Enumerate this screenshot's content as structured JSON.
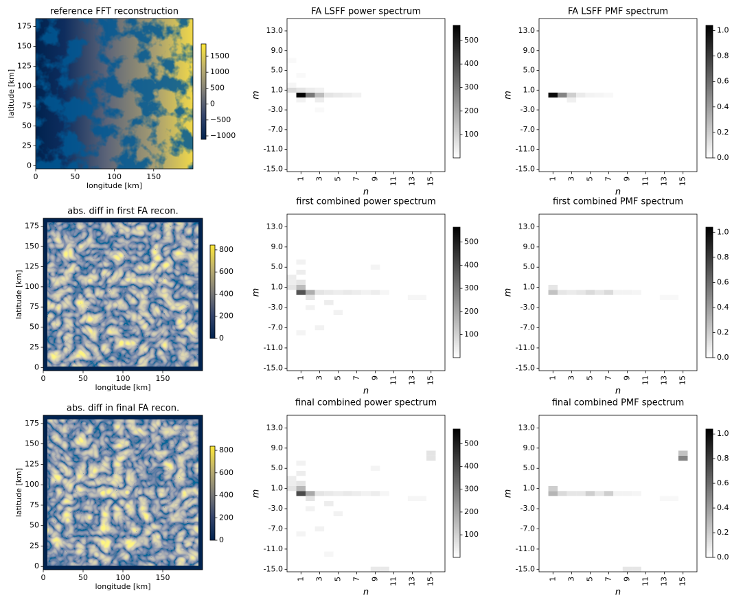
{
  "chart_data": [
    {
      "type": "image",
      "title": "reference FFT reconstruction",
      "xlabel": "longitude [km]",
      "ylabel": "latitude [km]",
      "xlim": [
        0,
        200
      ],
      "ylim": [
        -4,
        185
      ],
      "xticks": [
        0,
        50,
        100,
        150
      ],
      "yticks": [
        0,
        25,
        50,
        75,
        100,
        125,
        150,
        175
      ],
      "colormap": "cividis",
      "style": "terrain",
      "colorbar": {
        "clim": [
          -1108,
          1888
        ],
        "ticks": [
          {
            "value": -1000,
            "label": "−1000"
          },
          {
            "value": -500,
            "label": "−500"
          },
          0,
          500,
          1000,
          1500
        ]
      }
    },
    {
      "type": "heatmap",
      "title": "FA LSFF power spectrum",
      "xlabel": "n",
      "ylabel": "m",
      "xlim": [
        -0.5,
        16.5
      ],
      "ylim": [
        -15.5,
        15.5
      ],
      "xticks": [
        1,
        3,
        5,
        7,
        9,
        11,
        13,
        15
      ],
      "yticks": [
        {
          "value": -15,
          "label": "-15.0"
        },
        {
          "value": -11,
          "label": "-11.0"
        },
        {
          "value": -7,
          "label": "-7.0"
        },
        {
          "value": -3,
          "label": "-3.0"
        },
        {
          "value": 1,
          "label": "1.0"
        },
        {
          "value": 5,
          "label": "5.0"
        },
        {
          "value": 9,
          "label": "9.0"
        },
        {
          "value": 13,
          "label": "13.0"
        }
      ],
      "n": [
        1,
        2,
        3,
        4,
        5,
        6,
        7,
        0,
        1,
        2,
        3,
        3,
        1,
        0,
        1,
        3,
        0
      ],
      "m": [
        0,
        0,
        0,
        0,
        0,
        0,
        0,
        1,
        1,
        1,
        1,
        -1,
        -1,
        2,
        4,
        -3,
        7
      ],
      "values": [
        560,
        300,
        150,
        60,
        50,
        40,
        30,
        80,
        60,
        40,
        30,
        40,
        30,
        20,
        15,
        15,
        15
      ],
      "colorbar": {
        "clim": [
          1,
          564
        ],
        "ticks": [
          100,
          200,
          300,
          400,
          500
        ]
      }
    },
    {
      "type": "heatmap",
      "title": "FA LSFF PMF spectrum",
      "xlabel": "n",
      "ylabel": "m",
      "xlim": [
        -0.5,
        16.5
      ],
      "ylim": [
        -15.5,
        15.5
      ],
      "xticks": [
        1,
        3,
        5,
        7,
        9,
        11,
        13,
        15
      ],
      "yticks": [
        {
          "value": -15,
          "label": "-15.0"
        },
        {
          "value": -11,
          "label": "-11.0"
        },
        {
          "value": -7,
          "label": "-7.0"
        },
        {
          "value": -3,
          "label": "-3.0"
        },
        {
          "value": 1,
          "label": "1.0"
        },
        {
          "value": 5,
          "label": "5.0"
        },
        {
          "value": 9,
          "label": "9.0"
        },
        {
          "value": 13,
          "label": "13.0"
        }
      ],
      "n": [
        1,
        2,
        3,
        4,
        5,
        6,
        7,
        3
      ],
      "m": [
        0,
        0,
        0,
        0,
        0,
        0,
        0,
        -1
      ],
      "values": [
        1.0,
        0.5,
        0.2,
        0.08,
        0.05,
        0.04,
        0.03,
        0.06
      ],
      "colorbar": {
        "clim": [
          0,
          1.04
        ],
        "ticks": [
          {
            "value": 0,
            "label": "0.0"
          },
          0.2,
          0.4,
          0.6,
          0.8,
          {
            "value": 1,
            "label": "1.0"
          }
        ]
      }
    },
    {
      "type": "image",
      "title": "abs. diff in first FA recon.",
      "xlabel": "longitude [km]",
      "ylabel": "latitude [km]",
      "xlim": [
        0,
        200
      ],
      "ylim": [
        -4,
        185
      ],
      "xticks": [
        0,
        50,
        100,
        150
      ],
      "yticks": [
        0,
        25,
        50,
        75,
        100,
        125,
        150,
        175
      ],
      "colormap": "cividis",
      "style": "blobs",
      "colorbar": {
        "clim": [
          0,
          843
        ],
        "ticks": [
          0,
          200,
          400,
          600,
          800
        ]
      }
    },
    {
      "type": "heatmap",
      "title": "first combined power spectrum",
      "xlabel": "n",
      "ylabel": "m",
      "xlim": [
        -0.5,
        16.5
      ],
      "ylim": [
        -15.5,
        15.5
      ],
      "xticks": [
        1,
        3,
        5,
        7,
        9,
        11,
        13,
        15
      ],
      "yticks": [
        {
          "value": -15,
          "label": "-15.0"
        },
        {
          "value": -11,
          "label": "-11.0"
        },
        {
          "value": -7,
          "label": "-7.0"
        },
        {
          "value": -3,
          "label": "-3.0"
        },
        {
          "value": 1,
          "label": "1.0"
        },
        {
          "value": 5,
          "label": "5.0"
        },
        {
          "value": 9,
          "label": "9.0"
        },
        {
          "value": 13,
          "label": "13.0"
        }
      ],
      "n": [
        1,
        2,
        1,
        0,
        1,
        0,
        2,
        3,
        4,
        5,
        6,
        7,
        8,
        9,
        10,
        13,
        14,
        1,
        1,
        4,
        5,
        9,
        1,
        3,
        0,
        2
      ],
      "m": [
        0,
        0,
        1,
        1,
        2,
        2,
        -1,
        0,
        0,
        0,
        0,
        0,
        0,
        0,
        0,
        -1,
        -1,
        6,
        4,
        -2,
        -4,
        5,
        -8,
        -7,
        3,
        -3
      ],
      "values": [
        380,
        180,
        150,
        60,
        60,
        40,
        60,
        60,
        50,
        40,
        50,
        40,
        30,
        40,
        20,
        20,
        20,
        30,
        40,
        40,
        30,
        25,
        25,
        30,
        40,
        30
      ],
      "colorbar": {
        "clim": [
          1,
          564
        ],
        "ticks": [
          100,
          200,
          300,
          400,
          500
        ]
      }
    },
    {
      "type": "heatmap",
      "title": "first combined PMF spectrum",
      "xlabel": "n",
      "ylabel": "m",
      "xlim": [
        -0.5,
        16.5
      ],
      "ylim": [
        -15.5,
        15.5
      ],
      "xticks": [
        1,
        3,
        5,
        7,
        9,
        11,
        13,
        15
      ],
      "yticks": [
        {
          "value": -15,
          "label": "-15.0"
        },
        {
          "value": -11,
          "label": "-11.0"
        },
        {
          "value": -7,
          "label": "-7.0"
        },
        {
          "value": -3,
          "label": "-3.0"
        },
        {
          "value": 1,
          "label": "1.0"
        },
        {
          "value": 5,
          "label": "5.0"
        },
        {
          "value": 9,
          "label": "9.0"
        },
        {
          "value": 13,
          "label": "13.0"
        }
      ],
      "n": [
        1,
        1,
        2,
        3,
        4,
        5,
        6,
        7,
        8,
        9,
        10,
        13,
        14
      ],
      "m": [
        0,
        1,
        0,
        0,
        0,
        0,
        0,
        0,
        0,
        0,
        0,
        -1,
        -1
      ],
      "values": [
        0.25,
        0.1,
        0.1,
        0.08,
        0.1,
        0.15,
        0.1,
        0.15,
        0.05,
        0.05,
        0.04,
        0.03,
        0.03
      ],
      "colorbar": {
        "clim": [
          0,
          1.04
        ],
        "ticks": [
          {
            "value": 0,
            "label": "0.0"
          },
          0.2,
          0.4,
          0.6,
          0.8,
          {
            "value": 1,
            "label": "1.0"
          }
        ]
      }
    },
    {
      "type": "image",
      "title": "abs. diff in final FA recon.",
      "xlabel": "longitude [km]",
      "ylabel": "latitude [km]",
      "xlim": [
        0,
        200
      ],
      "ylim": [
        -4,
        185
      ],
      "xticks": [
        0,
        50,
        100,
        150
      ],
      "yticks": [
        0,
        25,
        50,
        75,
        100,
        125,
        150,
        175
      ],
      "colormap": "cividis",
      "style": "blobs",
      "colorbar": {
        "clim": [
          0,
          837
        ],
        "ticks": [
          0,
          200,
          400,
          600,
          800
        ]
      }
    },
    {
      "type": "heatmap",
      "title": "final combined power spectrum",
      "xlabel": "n",
      "ylabel": "m",
      "xlim": [
        -0.5,
        16.5
      ],
      "ylim": [
        -15.5,
        15.5
      ],
      "xticks": [
        1,
        3,
        5,
        7,
        9,
        11,
        13,
        15
      ],
      "yticks": [
        {
          "value": -15,
          "label": "-15.0"
        },
        {
          "value": -11,
          "label": "-11.0"
        },
        {
          "value": -7,
          "label": "-7.0"
        },
        {
          "value": -3,
          "label": "-3.0"
        },
        {
          "value": 1,
          "label": "1.0"
        },
        {
          "value": 5,
          "label": "5.0"
        },
        {
          "value": 9,
          "label": "9.0"
        },
        {
          "value": 13,
          "label": "13.0"
        }
      ],
      "n": [
        1,
        2,
        1,
        0,
        1,
        0,
        2,
        3,
        4,
        5,
        6,
        7,
        8,
        9,
        10,
        13,
        14,
        1,
        1,
        4,
        5,
        9,
        1,
        3,
        0,
        2,
        15,
        15,
        9,
        10,
        4
      ],
      "m": [
        0,
        0,
        1,
        1,
        2,
        2,
        -1,
        0,
        0,
        0,
        0,
        0,
        0,
        0,
        0,
        -1,
        -1,
        6,
        4,
        -2,
        -4,
        5,
        -8,
        -7,
        3,
        -3,
        7,
        8,
        -15,
        -15,
        -12
      ],
      "values": [
        400,
        190,
        160,
        60,
        60,
        40,
        60,
        60,
        50,
        40,
        50,
        40,
        30,
        40,
        20,
        20,
        20,
        30,
        40,
        40,
        30,
        25,
        25,
        30,
        40,
        30,
        60,
        60,
        50,
        50,
        20
      ],
      "colorbar": {
        "clim": [
          1,
          564
        ],
        "ticks": [
          100,
          200,
          300,
          400,
          500
        ]
      }
    },
    {
      "type": "heatmap",
      "title": "final combined PMF spectrum",
      "xlabel": "n",
      "ylabel": "m",
      "xlim": [
        -0.5,
        16.5
      ],
      "ylim": [
        -15.5,
        15.5
      ],
      "xticks": [
        1,
        3,
        5,
        7,
        9,
        11,
        13,
        15
      ],
      "yticks": [
        {
          "value": -15,
          "label": "-15.0"
        },
        {
          "value": -11,
          "label": "-11.0"
        },
        {
          "value": -7,
          "label": "-7.0"
        },
        {
          "value": -3,
          "label": "-3.0"
        },
        {
          "value": 1,
          "label": "1.0"
        },
        {
          "value": 5,
          "label": "5.0"
        },
        {
          "value": 9,
          "label": "9.0"
        },
        {
          "value": 13,
          "label": "13.0"
        }
      ],
      "n": [
        1,
        1,
        2,
        3,
        4,
        5,
        6,
        7,
        8,
        9,
        10,
        13,
        14,
        15,
        15,
        9,
        10
      ],
      "m": [
        0,
        1,
        0,
        0,
        0,
        0,
        0,
        0,
        0,
        0,
        0,
        -1,
        -1,
        7,
        8,
        -15,
        -15
      ],
      "values": [
        0.3,
        0.2,
        0.15,
        0.1,
        0.1,
        0.2,
        0.1,
        0.2,
        0.05,
        0.05,
        0.04,
        0.03,
        0.03,
        0.5,
        0.25,
        0.1,
        0.1
      ],
      "colorbar": {
        "clim": [
          0,
          1.04
        ],
        "ticks": [
          {
            "value": 0,
            "label": "0.0"
          },
          0.2,
          0.4,
          0.6,
          0.8,
          {
            "value": 1,
            "label": "1.0"
          }
        ]
      }
    }
  ]
}
